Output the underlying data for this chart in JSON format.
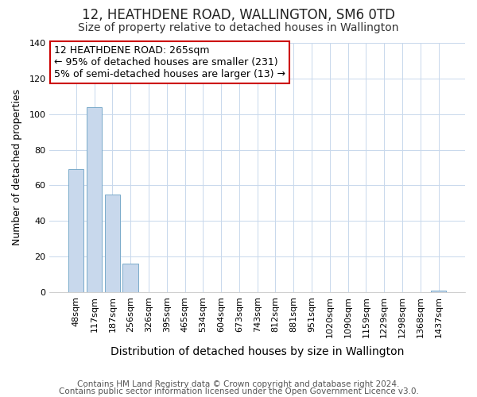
{
  "title": "12, HEATHDENE ROAD, WALLINGTON, SM6 0TD",
  "subtitle": "Size of property relative to detached houses in Wallington",
  "xlabel": "Distribution of detached houses by size in Wallington",
  "ylabel": "Number of detached properties",
  "bar_labels": [
    "48sqm",
    "117sqm",
    "187sqm",
    "256sqm",
    "326sqm",
    "395sqm",
    "465sqm",
    "534sqm",
    "604sqm",
    "673sqm",
    "743sqm",
    "812sqm",
    "881sqm",
    "951sqm",
    "1020sqm",
    "1090sqm",
    "1159sqm",
    "1229sqm",
    "1298sqm",
    "1368sqm",
    "1437sqm"
  ],
  "bar_values": [
    69,
    104,
    55,
    16,
    0,
    0,
    0,
    0,
    0,
    0,
    0,
    0,
    0,
    0,
    0,
    0,
    0,
    0,
    0,
    0,
    1
  ],
  "bar_color": "#c8d8ec",
  "bar_edge_color": "#7aaaca",
  "annotation_box_text": "12 HEATHDENE ROAD: 265sqm\n← 95% of detached houses are smaller (231)\n5% of semi-detached houses are larger (13) →",
  "annotation_box_facecolor": "#ffffff",
  "annotation_box_edgecolor": "#cc0000",
  "ylim": [
    0,
    140
  ],
  "yticks": [
    0,
    20,
    40,
    60,
    80,
    100,
    120,
    140
  ],
  "footer_line1": "Contains HM Land Registry data © Crown copyright and database right 2024.",
  "footer_line2": "Contains public sector information licensed under the Open Government Licence v3.0.",
  "title_fontsize": 12,
  "subtitle_fontsize": 10,
  "xlabel_fontsize": 10,
  "ylabel_fontsize": 9,
  "tick_fontsize": 8,
  "footer_fontsize": 7.5,
  "annotation_fontsize": 9,
  "grid_color": "#c8d8ec"
}
